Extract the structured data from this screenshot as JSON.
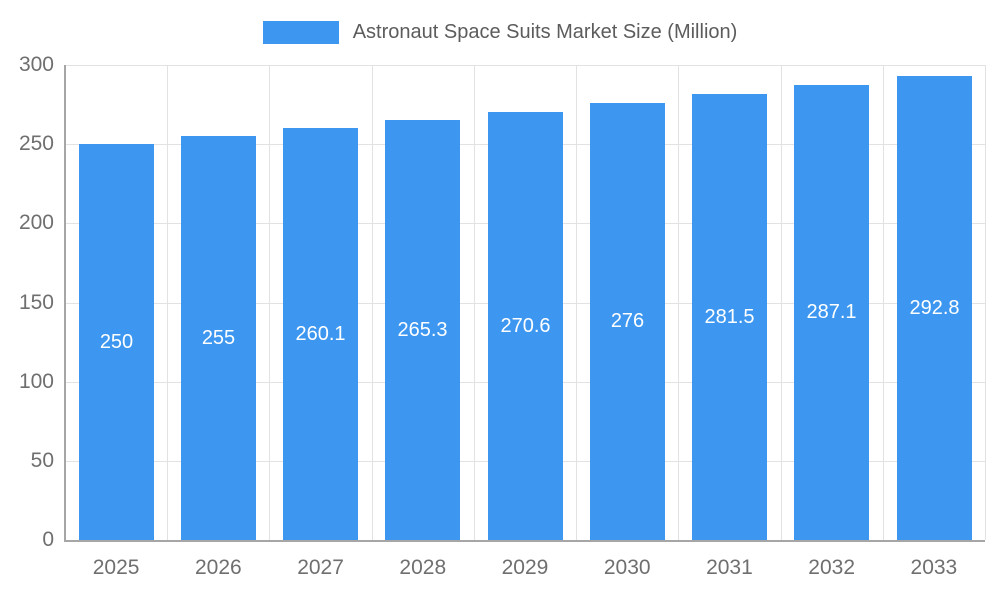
{
  "chart_data": {
    "type": "bar",
    "title": "Astronaut Space Suits Market Size (Million)",
    "categories": [
      "2025",
      "2026",
      "2027",
      "2028",
      "2029",
      "2030",
      "2031",
      "2032",
      "2033"
    ],
    "values": [
      250,
      255,
      260.1,
      265.3,
      270.6,
      276,
      281.5,
      287.1,
      292.8
    ],
    "ylim": [
      0,
      300
    ],
    "yticks": [
      0,
      50,
      100,
      150,
      200,
      250,
      300
    ],
    "xlabel": "",
    "ylabel": "",
    "grid": true,
    "legend_position": "top-center",
    "colors": {
      "bar": "#3d97f0",
      "grid": "#e2e2e2",
      "axis": "#a6a6a6",
      "tick_label": "#6f6f6f",
      "title": "#5c5c5c",
      "value_label": "#ffffff"
    }
  }
}
